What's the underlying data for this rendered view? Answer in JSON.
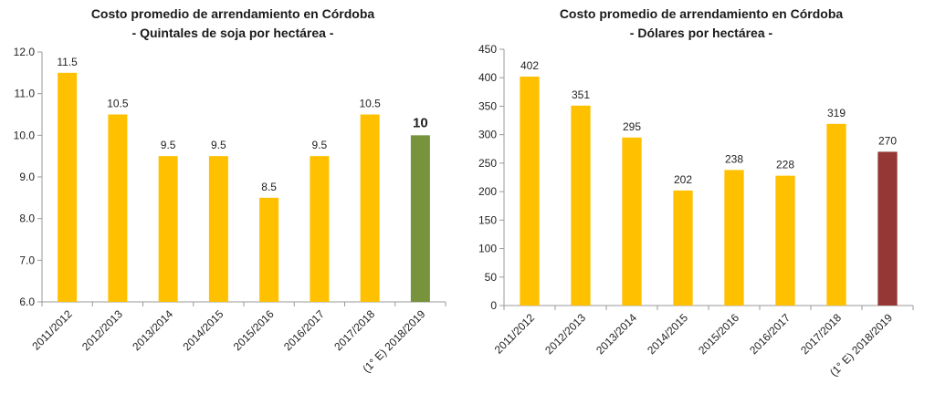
{
  "chart_data": [
    {
      "type": "bar",
      "title": "Costo promedio de arrendamiento en Córdoba",
      "subtitle": "- Quintales de soja por hectárea -",
      "categories": [
        "2011/2012",
        "2012/2013",
        "2013/2014",
        "2014/2015",
        "2015/2016",
        "2016/2017",
        "2017/2018",
        "(1° E) 2018/2019"
      ],
      "values": [
        11.5,
        10.5,
        9.5,
        9.5,
        8.5,
        9.5,
        10.5,
        10
      ],
      "value_labels": [
        "11.5",
        "10.5",
        "9.5",
        "9.5",
        "8.5",
        "9.5",
        "10.5",
        "10"
      ],
      "highlight_index": 7,
      "ylim": [
        6.0,
        12.0
      ],
      "yticks": [
        6.0,
        7.0,
        8.0,
        9.0,
        10.0,
        11.0,
        12.0
      ],
      "ytick_labels": [
        "6.0",
        "7.0",
        "8.0",
        "9.0",
        "10.0",
        "11.0",
        "12.0"
      ],
      "grid": false,
      "legend": "none",
      "colors": {
        "bar": "#FFC000",
        "highlight": "#77933C",
        "axis": "#9a9a9a"
      }
    },
    {
      "type": "bar",
      "title": "Costo promedio de arrendamiento en Córdoba",
      "subtitle": "- Dólares por hectárea -",
      "categories": [
        "2011/2012",
        "2012/2013",
        "2013/2014",
        "2014/2015",
        "2015/2016",
        "2016/2017",
        "2017/2018",
        "(1° E) 2018/2019"
      ],
      "values": [
        402,
        351,
        295,
        202,
        238,
        228,
        319,
        270
      ],
      "value_labels": [
        "402",
        "351",
        "295",
        "202",
        "238",
        "228",
        "319",
        "270"
      ],
      "highlight_index": 7,
      "ylim": [
        0,
        450
      ],
      "yticks": [
        0,
        50,
        100,
        150,
        200,
        250,
        300,
        350,
        400,
        450
      ],
      "ytick_labels": [
        "0",
        "50",
        "100",
        "150",
        "200",
        "250",
        "300",
        "350",
        "400",
        "450"
      ],
      "grid": false,
      "legend": "none",
      "colors": {
        "bar": "#FFC000",
        "highlight": "#953735",
        "axis": "#9a9a9a"
      }
    }
  ]
}
